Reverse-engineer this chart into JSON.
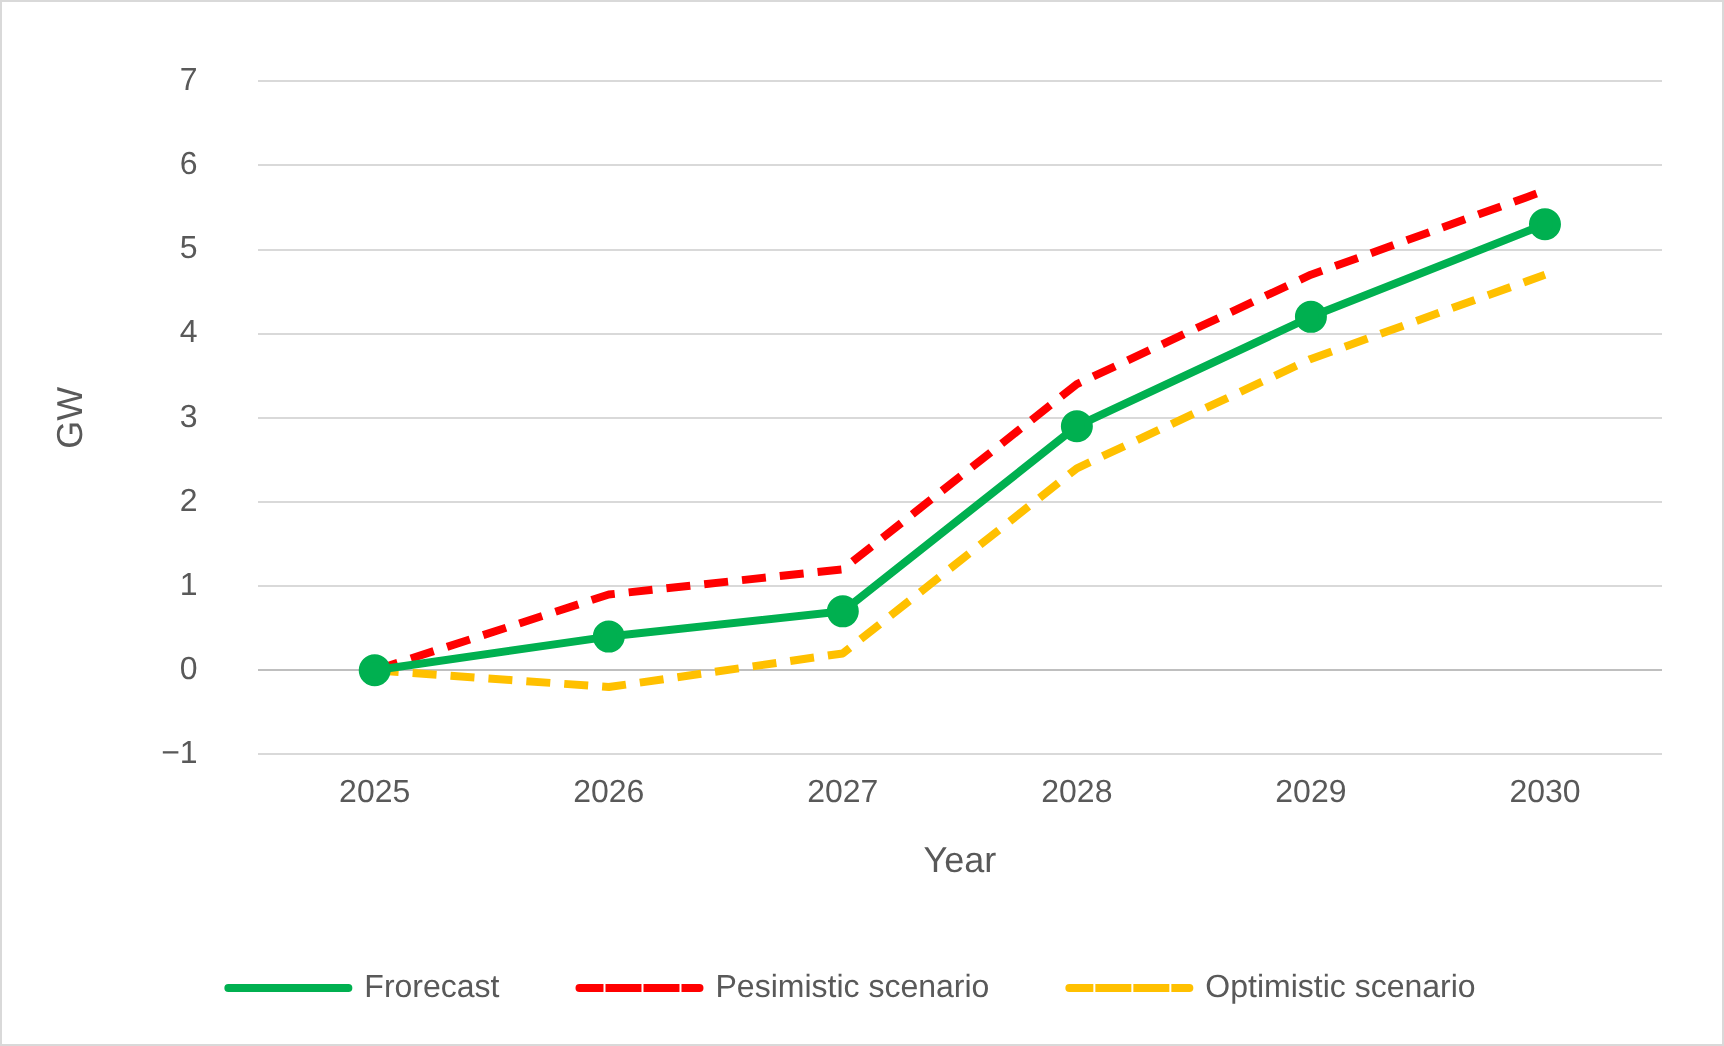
{
  "chart_data": {
    "type": "line",
    "xlabel": "Year",
    "ylabel": "GW",
    "categories": [
      "2025",
      "2026",
      "2027",
      "2028",
      "2029",
      "2030"
    ],
    "series": [
      {
        "name": "Frorecast",
        "color": "#00b050",
        "values": [
          0,
          0.4,
          0.7,
          2.9,
          4.2,
          5.3
        ],
        "marker": "circle",
        "line_style": "solid"
      },
      {
        "name": "Pesimistic scenario",
        "color": "#ff0000",
        "values": [
          0,
          0.9,
          1.2,
          3.4,
          4.7,
          5.7
        ],
        "marker": "none",
        "line_style": "dashed"
      },
      {
        "name": "Optimistic scenario",
        "color": "#ffc000",
        "values": [
          0,
          -0.2,
          0.2,
          2.4,
          3.7,
          4.7
        ],
        "marker": "none",
        "line_style": "dashed"
      }
    ],
    "ylim": [
      -1,
      7
    ],
    "yticks": [
      {
        "value": -1,
        "label": "−1"
      },
      0,
      1,
      2,
      3,
      4,
      5,
      6,
      7
    ],
    "grid": "y",
    "legend": "bottom"
  }
}
